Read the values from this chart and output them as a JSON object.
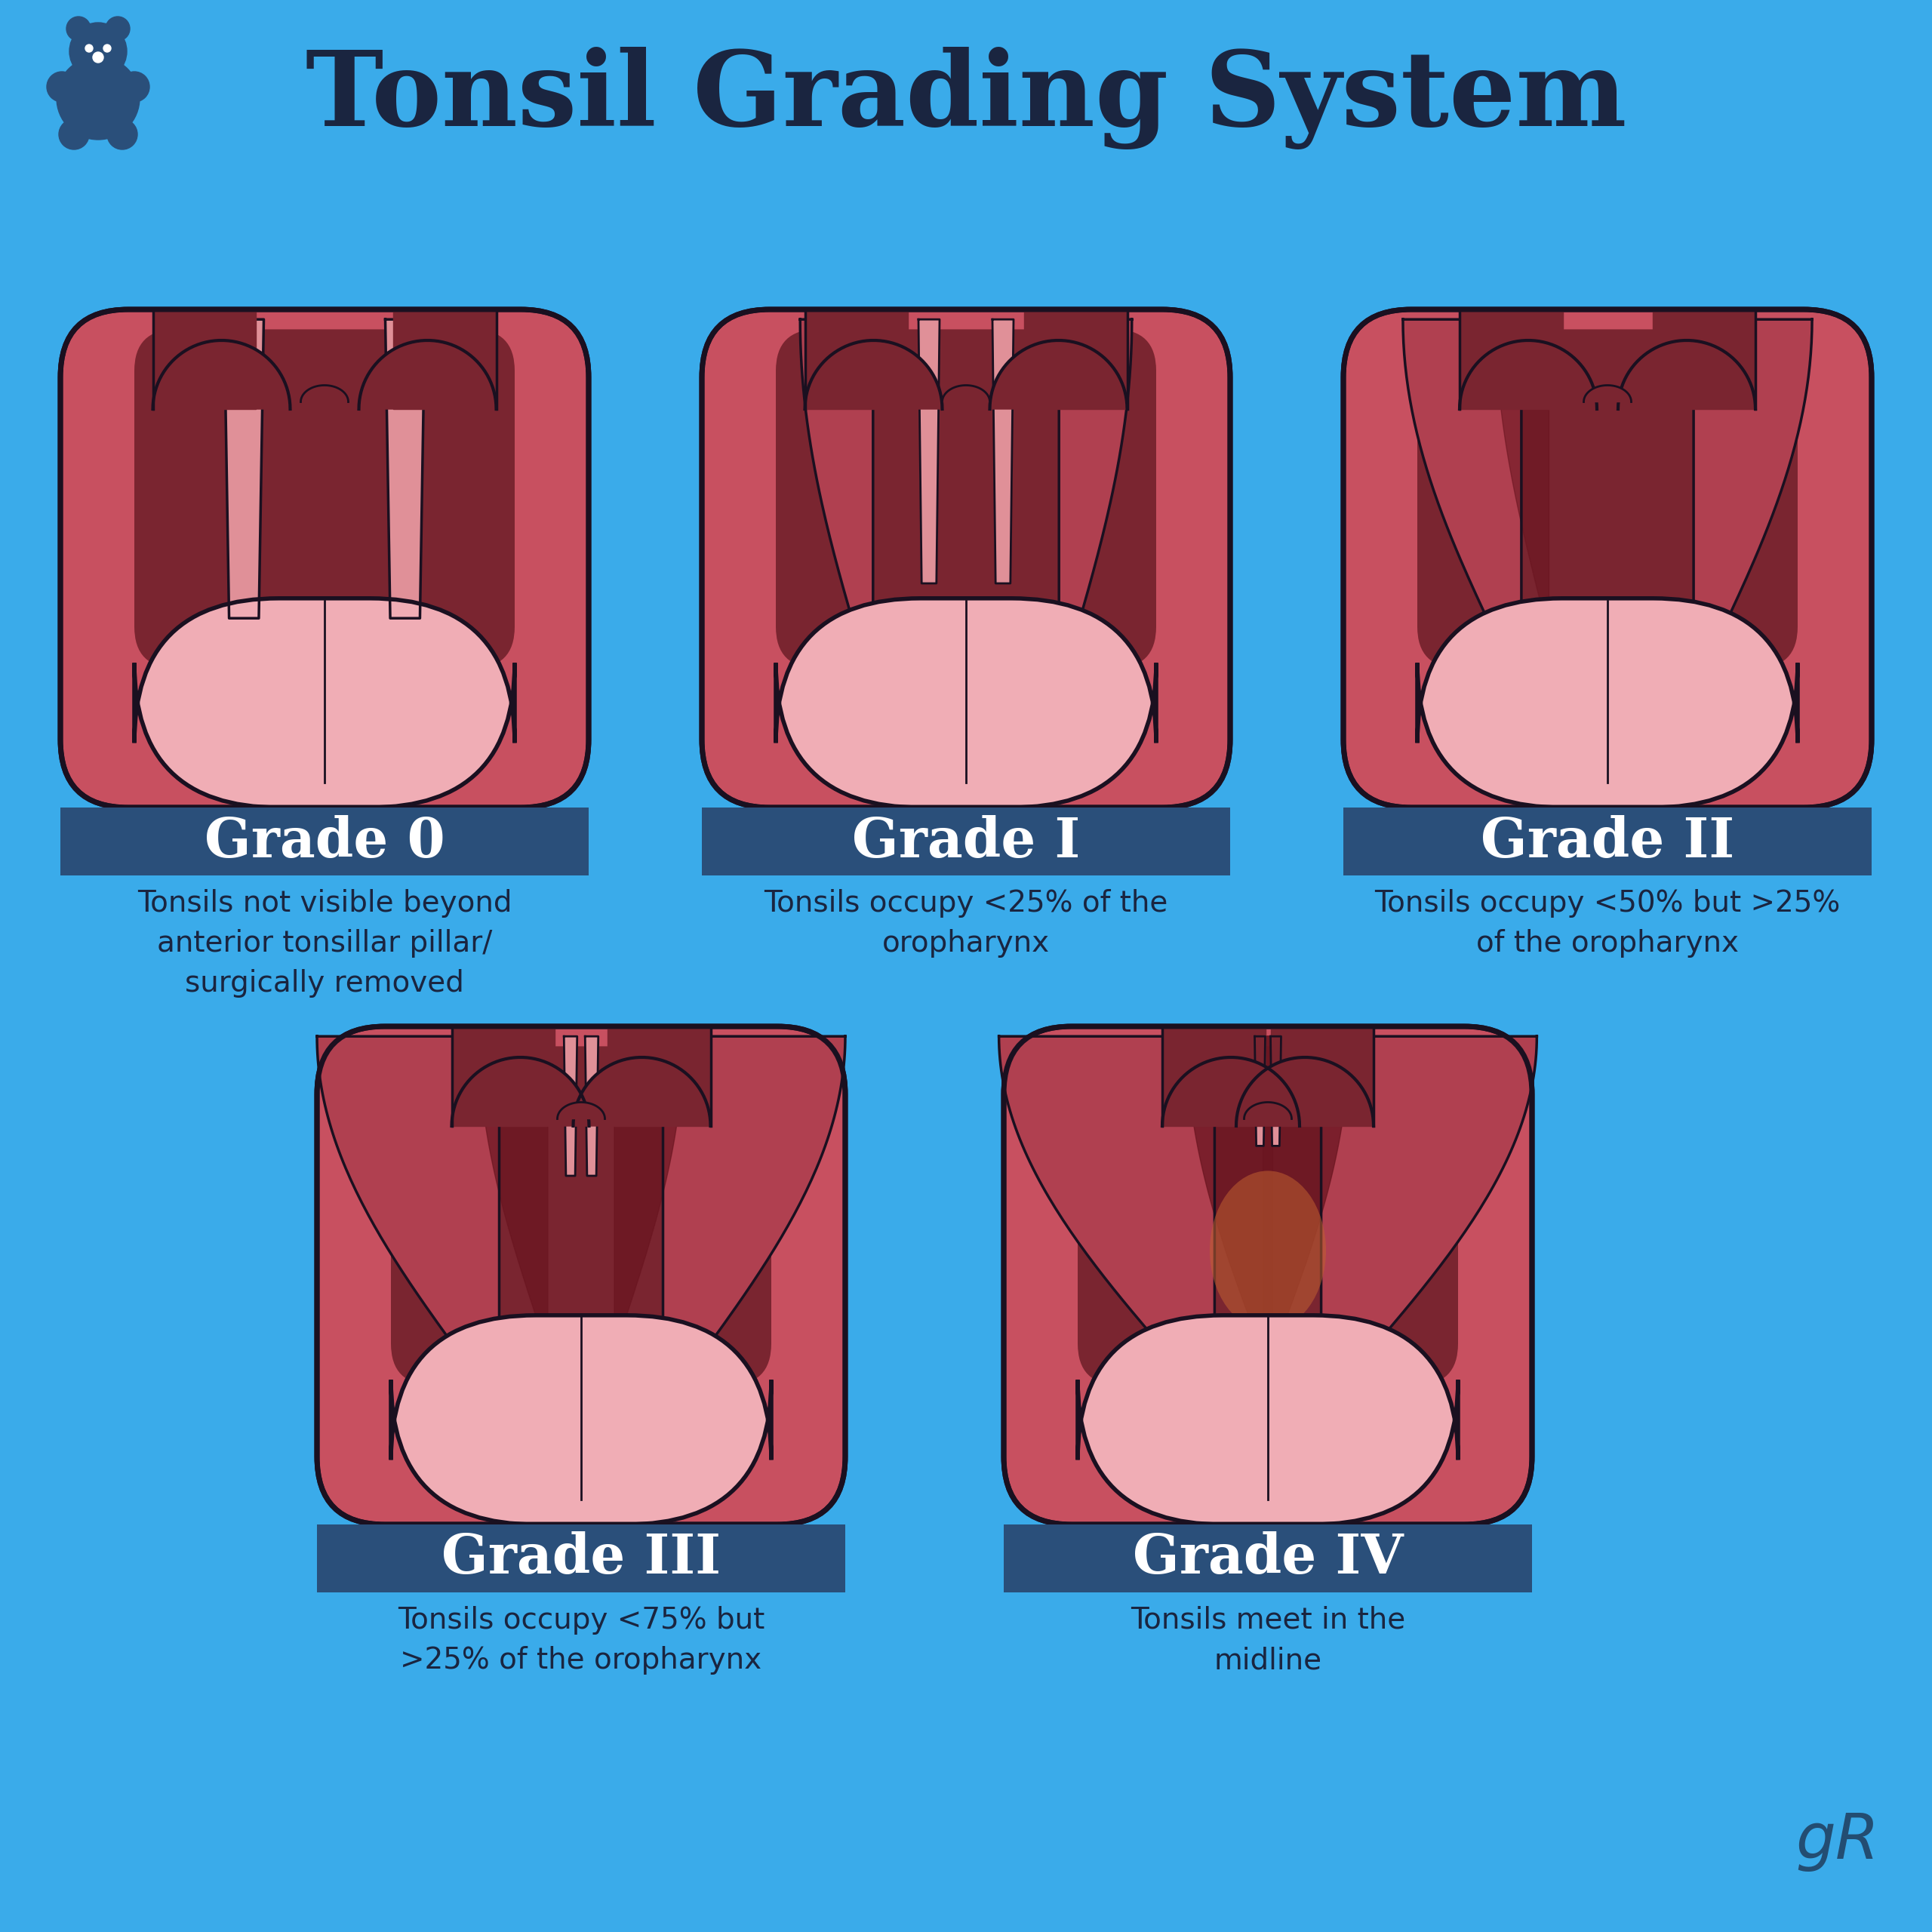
{
  "title": "Tonsil Grading System",
  "bg": "#3AABEA",
  "title_color": "#1a2540",
  "banner_color": "#2a4f7a",
  "banner_text_color": "#FFFFFF",
  "desc_color": "#1a2540",
  "grades": [
    "Grade 0",
    "Grade I",
    "Grade II",
    "Grade III",
    "Grade IV"
  ],
  "descriptions": [
    "Tonsils not visible beyond\nanterior tonsillar pillar/\nsurgically removed",
    "Tonsils occupy <25% of the\noropharynx",
    "Tonsils occupy <50% but >25%\nof the oropharynx",
    "Tonsils occupy <75% but\n>25% of the oropharynx",
    "Tonsils meet in the\nmidline"
  ],
  "col_outer": "#C85060",
  "col_throat": "#7A2530",
  "col_tonsil": "#B04050",
  "col_tonsil_dark": "#6A1520",
  "col_tongue": "#F0ADB5",
  "col_line": "#1a1020",
  "col_pillar": "#E09098",
  "col_highlight": "#C05868"
}
